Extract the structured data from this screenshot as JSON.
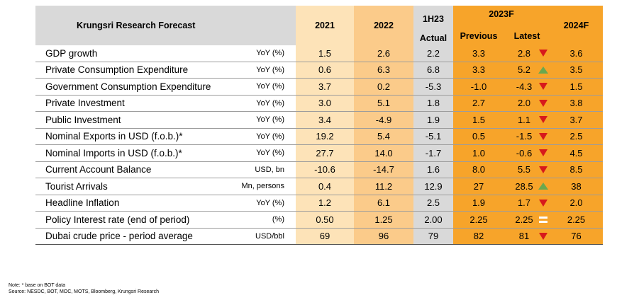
{
  "header": {
    "title": "Krungsri Research Forecast",
    "col_2021": "2021",
    "col_2022": "2022",
    "col_1h23": "1H23",
    "col_1h23_sub": "Actual",
    "col_2023f": "2023F",
    "col_previous": "Previous",
    "col_latest": "Latest",
    "col_2024f": "2024F"
  },
  "rows": [
    {
      "label": "GDP growth",
      "unit": "YoY (%)",
      "y2021": "1.5",
      "y2022": "2.6",
      "h123": "2.2",
      "previous": "3.3",
      "latest": "2.8",
      "trend": "down",
      "y2024": "3.6"
    },
    {
      "label": "Private Consumption Expenditure",
      "unit": "YoY (%)",
      "y2021": "0.6",
      "y2022": "6.3",
      "h123": "6.8",
      "previous": "3.3",
      "latest": "5.2",
      "trend": "up",
      "y2024": "3.5"
    },
    {
      "label": "Government Consumption Expenditure",
      "unit": "YoY (%)",
      "y2021": "3.7",
      "y2022": "0.2",
      "h123": "-5.3",
      "previous": "-1.0",
      "latest": "-4.3",
      "trend": "down",
      "y2024": "1.5"
    },
    {
      "label": "Private Investment",
      "unit": "YoY (%)",
      "y2021": "3.0",
      "y2022": "5.1",
      "h123": "1.8",
      "previous": "2.7",
      "latest": "2.0",
      "trend": "down",
      "y2024": "3.8"
    },
    {
      "label": "Public Investment",
      "unit": "YoY (%)",
      "y2021": "3.4",
      "y2022": "-4.9",
      "h123": "1.9",
      "previous": "1.5",
      "latest": "1.1",
      "trend": "down",
      "y2024": "3.7"
    },
    {
      "label": "Nominal Exports in USD (f.o.b.)*",
      "unit": "YoY (%)",
      "y2021": "19.2",
      "y2022": "5.4",
      "h123": "-5.1",
      "previous": "0.5",
      "latest": "-1.5",
      "trend": "down",
      "y2024": "2.5"
    },
    {
      "label": "Nominal Imports in USD (f.o.b.)*",
      "unit": "YoY (%)",
      "y2021": "27.7",
      "y2022": "14.0",
      "h123": "-1.7",
      "previous": "1.0",
      "latest": "-0.6",
      "trend": "down",
      "y2024": "4.5"
    },
    {
      "label": "Current Account Balance",
      "unit": "USD, bn",
      "y2021": "-10.6",
      "y2022": "-14.7",
      "h123": "1.6",
      "previous": "8.0",
      "latest": "5.5",
      "trend": "down",
      "y2024": "8.5"
    },
    {
      "label": "Tourist Arrivals",
      "unit": "Mn, persons",
      "y2021": "0.4",
      "y2022": "11.2",
      "h123": "12.9",
      "previous": "27",
      "latest": "28.5",
      "trend": "up",
      "y2024": "38"
    },
    {
      "label": "Headline Inflation",
      "unit": "YoY (%)",
      "y2021": "1.2",
      "y2022": "6.1",
      "h123": "2.5",
      "previous": "1.9",
      "latest": "1.7",
      "trend": "down",
      "y2024": "2.0"
    },
    {
      "label": "Policy Interest rate (end of period)",
      "unit": "(%)",
      "y2021": "0.50",
      "y2022": "1.25",
      "h123": "2.00",
      "previous": "2.25",
      "latest": "2.25",
      "trend": "same",
      "y2024": "2.25"
    },
    {
      "label": "Dubai crude price - period average",
      "unit": "USD/bbl",
      "y2021": "69",
      "y2022": "96",
      "h123": "79",
      "previous": "82",
      "latest": "81",
      "trend": "down",
      "y2024": "76"
    }
  ],
  "notes": {
    "note": "Note: * base on BOT data",
    "source": "Source: NESDC, BOT, MOC, MOTS, Bloomberg, Krungsri Research"
  },
  "colors": {
    "col_2021": "#fde3b8",
    "col_2022": "#fbcb8a",
    "col_1h23": "#d9d9d9",
    "col_2023f": "#f7a42a",
    "arrow_down": "#d7191c",
    "arrow_up": "#6aa84f"
  },
  "icons": {
    "down": "red-down-triangle-icon",
    "up": "green-up-triangle-icon",
    "same": "equal-sign-icon"
  }
}
